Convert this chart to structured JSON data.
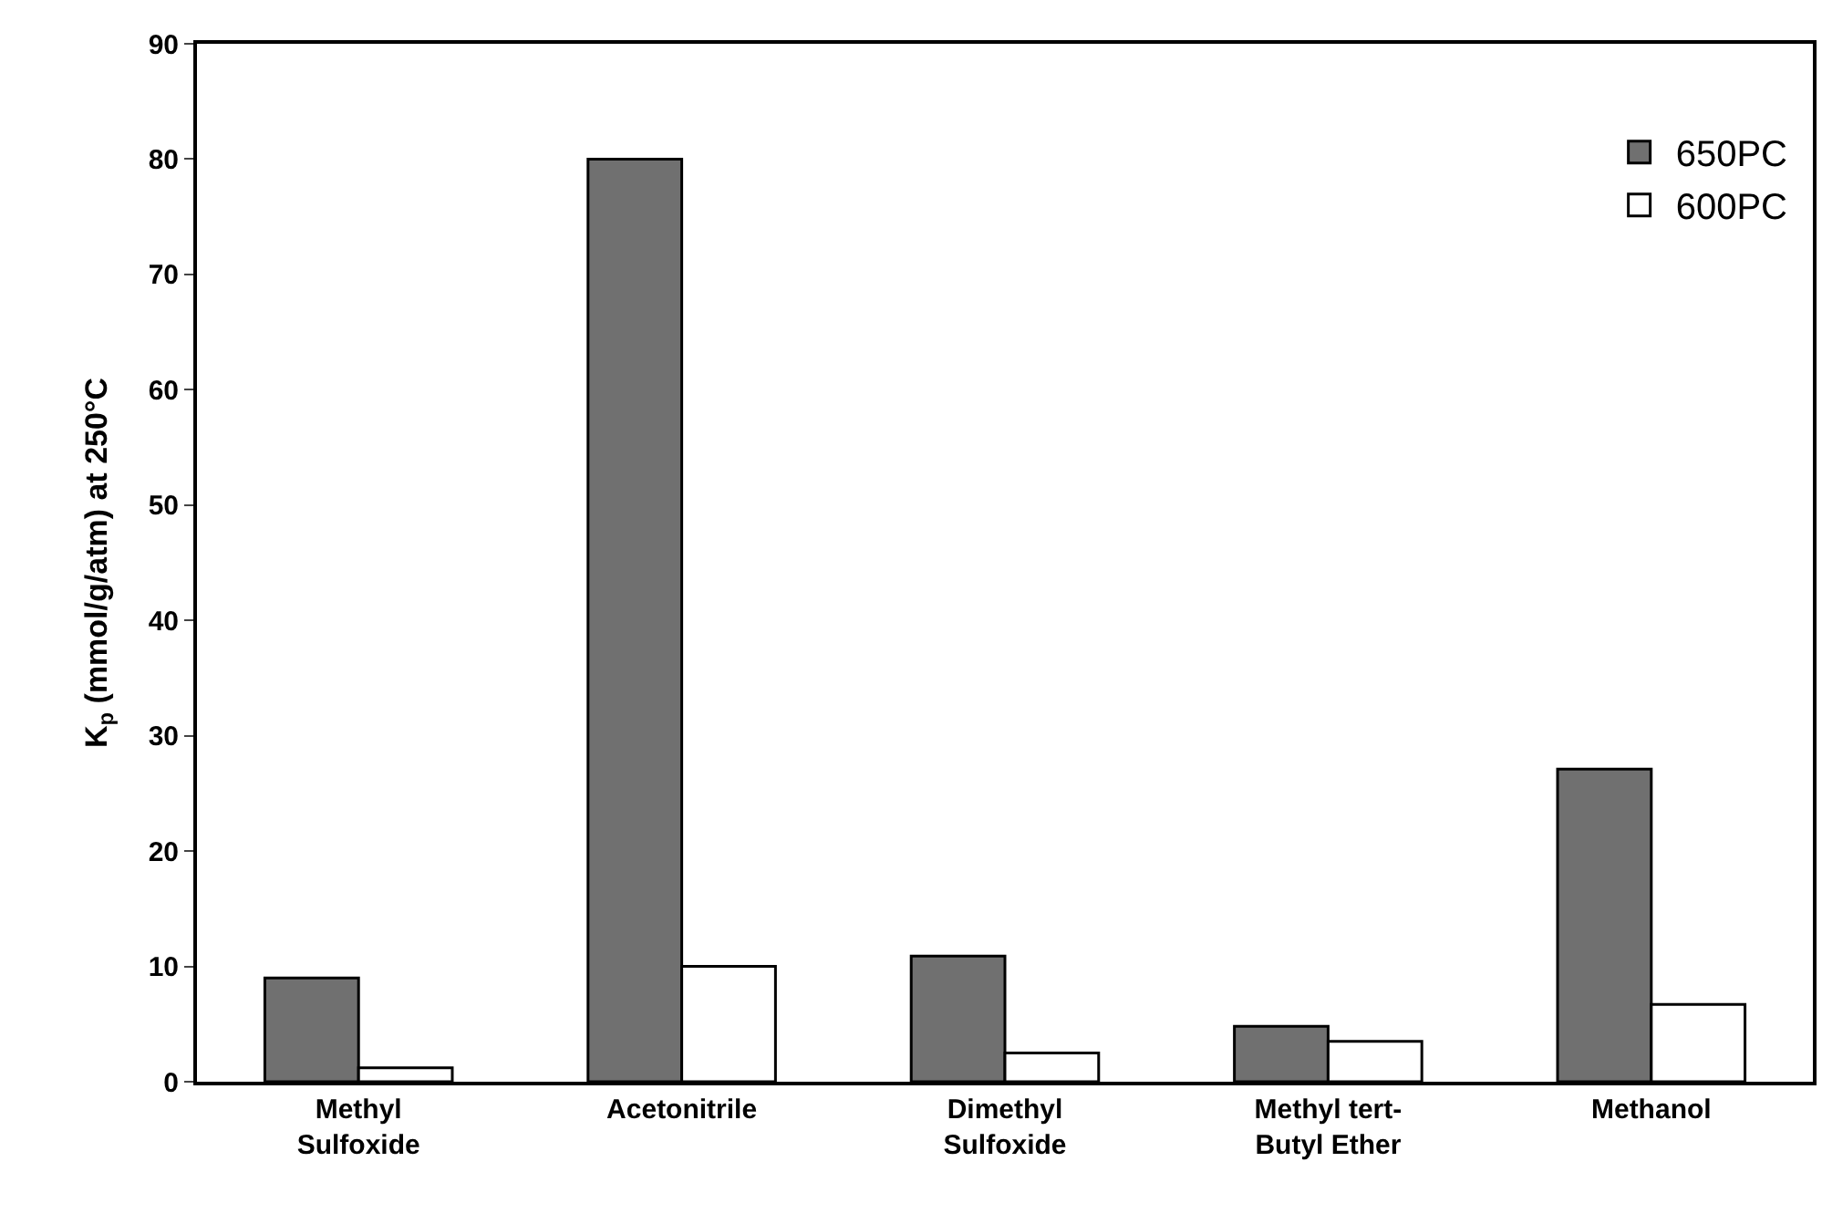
{
  "chart_data": {
    "type": "bar",
    "categories": [
      "Methyl Sulfoxide",
      "Acetonitrile",
      "Dimethyl Sulfoxide",
      "Methyl tert-Butyl Ether",
      "Methanol"
    ],
    "ylabel": "K$_{p}$ (mmol/g/atm) at 250°C",
    "series": [
      {
        "name": "650PC",
        "color": "#707070",
        "values": [
          9.0,
          80,
          10.9,
          4.8,
          27.1
        ]
      },
      {
        "name": "600PC",
        "color": "#ffffff",
        "values": [
          1.2,
          10,
          2.5,
          3.5,
          6.7
        ]
      }
    ],
    "ylim": [
      0,
      90
    ],
    "yticks": [
      0,
      10,
      20,
      30,
      40,
      50,
      60,
      70,
      80,
      90
    ],
    "grid": false,
    "legend": "top right"
  }
}
